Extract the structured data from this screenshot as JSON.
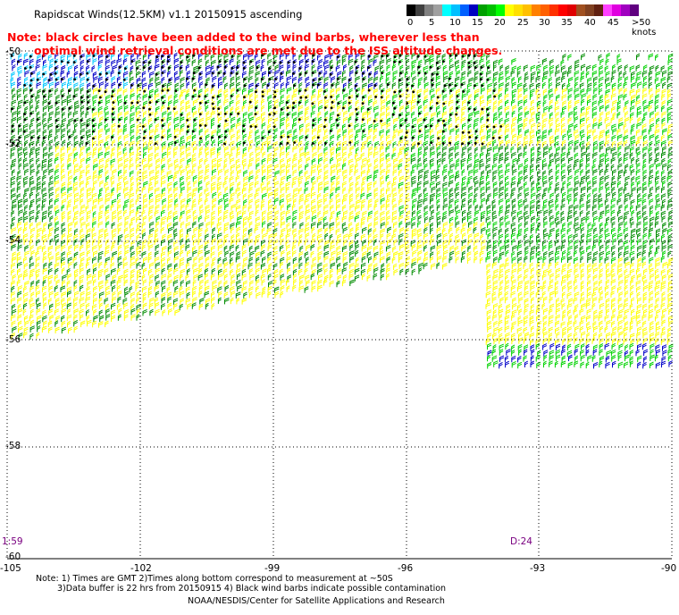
{
  "header": {
    "title": "Rapidscat Winds(12.5KM) v1.1 20150915 ascending",
    "note_line1": "Note: black circles have been added to the wind barbs, wherever less than",
    "note_line2": "optimal wind retrieval conditions are met due to the ISS altitude changes."
  },
  "legend": {
    "colors": [
      "#000000",
      "#404040",
      "#808080",
      "#a0a0a0",
      "#00ffff",
      "#00c0ff",
      "#0060ff",
      "#0000c0",
      "#00a000",
      "#00c000",
      "#00ff00",
      "#ffff00",
      "#ffe000",
      "#ffc000",
      "#ff8000",
      "#ff6000",
      "#ff3000",
      "#ff0000",
      "#e00000",
      "#a05020",
      "#804020",
      "#602010",
      "#ff40ff",
      "#e000e0",
      "#a000c0",
      "#600080"
    ],
    "labels": [
      "0",
      "5",
      "10",
      "15",
      "20",
      "25",
      "30",
      "35",
      "40",
      "45",
      ">50 knots"
    ]
  },
  "map": {
    "lat_labels": [
      "-50",
      "-52",
      "-54",
      "-56",
      "-58",
      "-60"
    ],
    "lon_labels": [
      "-105",
      "-102",
      "-99",
      "-96",
      "-93",
      "-90"
    ],
    "time_labels": [
      "1:59",
      "D:24"
    ],
    "barb_colors": {
      "low": "#00c8ff",
      "mid_low": "#0000c8",
      "mid": "#008c00",
      "mid_high": "#00d200",
      "high": "#ffff00"
    },
    "contamination_dot_color": "#000000"
  },
  "footer": {
    "line1": "Note: 1) Times are GMT 2)Times along bottom correspond to measurement at ~50S",
    "line2": "3)Data buffer is 22 hrs from 20150915 4) Black wind barbs indicate possible contamination",
    "line3": "NOAA/NESDIS/Center for Satellite Applications and Research"
  }
}
